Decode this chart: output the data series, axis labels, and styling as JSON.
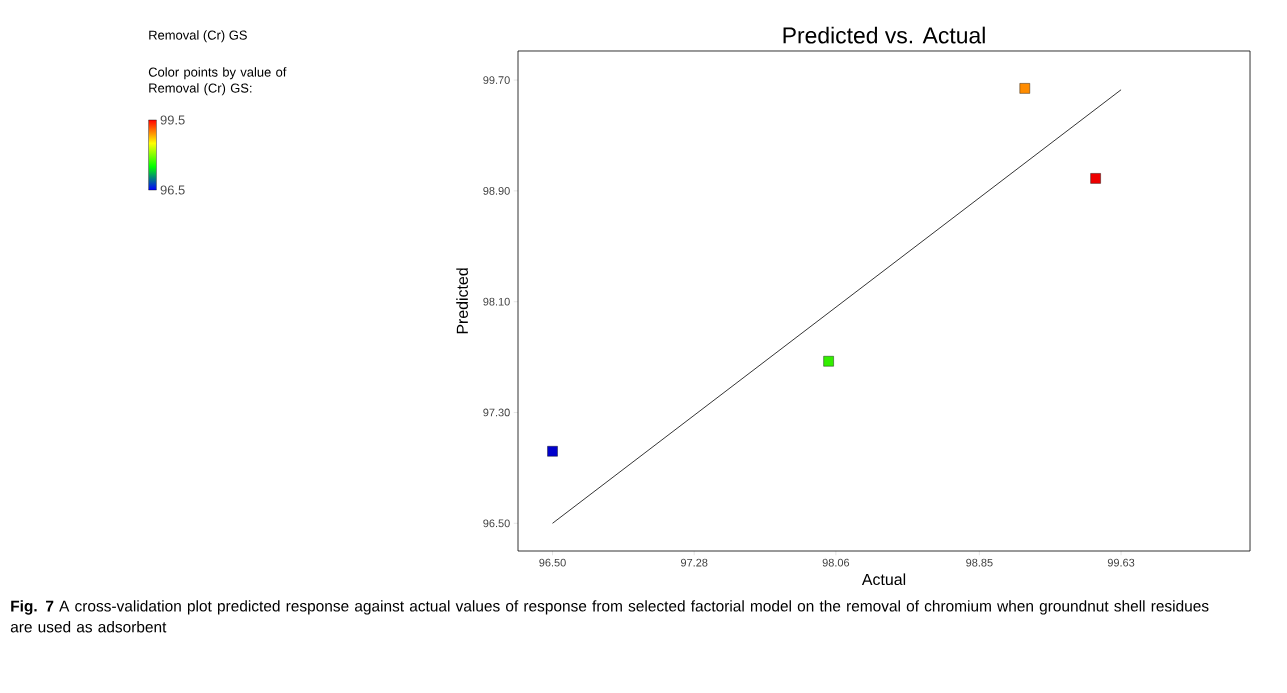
{
  "chart_data": {
    "type": "scatter",
    "title": "Predicted vs. Actual",
    "subtitle": "Removal (Cr) GS",
    "clabel": "Color points by value of Removal (Cr) GS:",
    "xlabel": "Actual",
    "ylabel": "Predicted",
    "xlim": [
      96.31,
      100.34
    ],
    "ylim": [
      96.3,
      99.91
    ],
    "xticks": [
      {
        "value": 96.5,
        "label": "96.50"
      },
      {
        "value": 97.28,
        "label": "97.28"
      },
      {
        "value": 98.06,
        "label": "98.06"
      },
      {
        "value": 98.85,
        "label": "98.85"
      },
      {
        "value": 99.63,
        "label": "99.63"
      }
    ],
    "yticks": [
      {
        "value": 96.5,
        "label": "96.50"
      },
      {
        "value": 97.3,
        "label": "97.30"
      },
      {
        "value": 98.1,
        "label": "98.10"
      },
      {
        "value": 98.9,
        "label": "98.90"
      },
      {
        "value": 99.7,
        "label": "99.70"
      }
    ],
    "clim": [
      96.5,
      99.5
    ],
    "cticks": [
      96.5,
      99.5
    ],
    "grid": false,
    "series": [
      {
        "type": "line",
        "x": [
          96.5,
          99.63
        ],
        "values": [
          96.5,
          99.63
        ],
        "color": "#000000",
        "marker": "none",
        "line_style": "solid"
      },
      {
        "x": [
          96.5,
          98.02,
          99.1,
          99.49
        ],
        "values": [
          97.02,
          97.67,
          99.64,
          98.99
        ],
        "colors": [
          "#0000cc",
          "#33ee00",
          "#ff8c00",
          "#ee0000"
        ],
        "marker": "square"
      }
    ],
    "annotations": [
      "**Fig. 7** A cross-validation plot predicted response against actual values of response from selected factorial model on the removal of chromium when groundnut shell residues are used as adsorbent"
    ]
  }
}
